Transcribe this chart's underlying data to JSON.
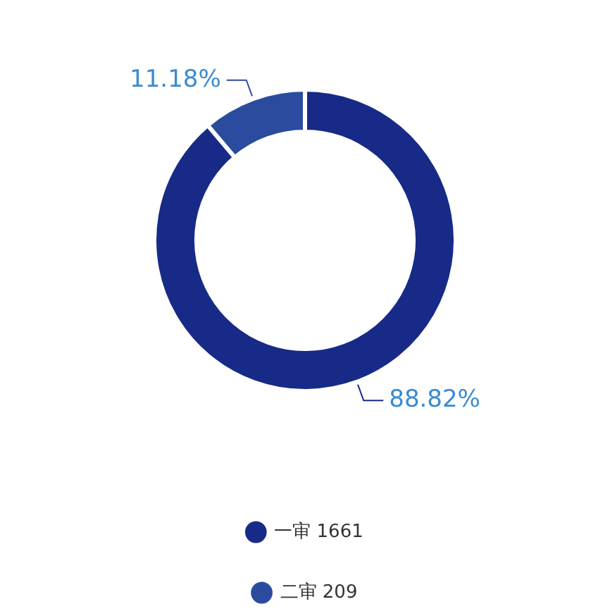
{
  "chart_data": {
    "type": "donut",
    "categories": [
      "一审 1661",
      "二审 209"
    ],
    "values": [
      88.82,
      11.18
    ],
    "colors": [
      "#182a87",
      "#2b4c9e"
    ],
    "value_labels": [
      "88.82%",
      "11.18%"
    ],
    "legend": "bottom"
  }
}
